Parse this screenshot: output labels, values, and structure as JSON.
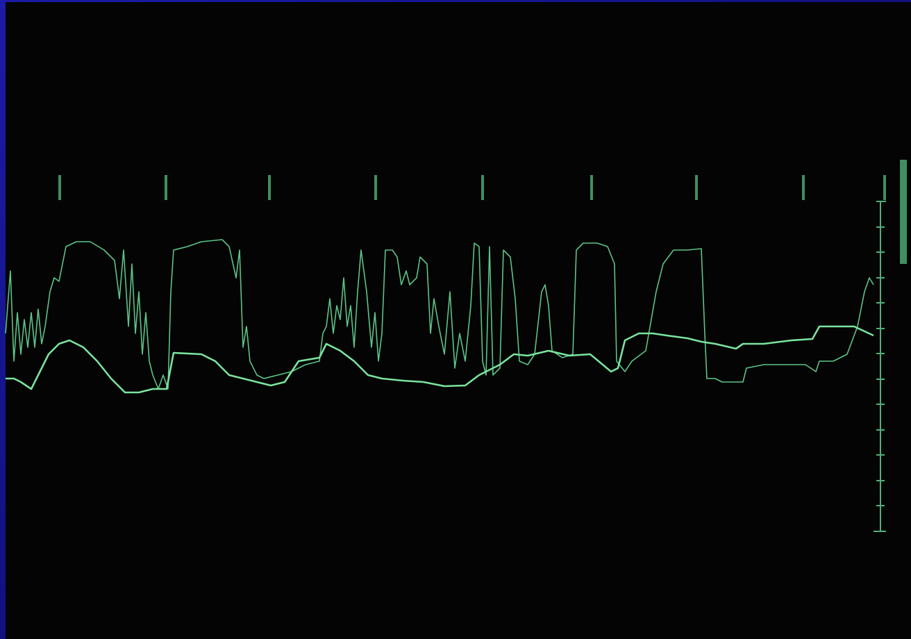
{
  "chart_data": {
    "type": "line",
    "xlim": [
      0,
      1312
    ],
    "ylim": [
      -155,
      765
    ],
    "series": [
      {
        "color": "#5cc488",
        "x": [
          8,
          15,
          20,
          25,
          30,
          35,
          40,
          45,
          50,
          55,
          60,
          65,
          72,
          78,
          85,
          90,
          95,
          110,
          130,
          150,
          165,
          172,
          178,
          185,
          190,
          195,
          200,
          205,
          210,
          215,
          220,
          228,
          235,
          242,
          246,
          250,
          270,
          290,
          320,
          330,
          340,
          345,
          350,
          355,
          360,
          370,
          380,
          400,
          420,
          440,
          460,
          465,
          470,
          475,
          480,
          485,
          490,
          495,
          500,
          505,
          510,
          515,
          520,
          528,
          535,
          540,
          545,
          550,
          555,
          565,
          572,
          578,
          585,
          590,
          600,
          605,
          615,
          620,
          625,
          632,
          640,
          648,
          655,
          662,
          670,
          678,
          683,
          690,
          695,
          700,
          705,
          710,
          720,
          725,
          735,
          742,
          748,
          760,
          770,
          780,
          785,
          790,
          795,
          810,
          825,
          830,
          840,
          860,
          875,
          885,
          888,
          900,
          910,
          930,
          945,
          955,
          970,
          990,
          1010,
          1015,
          1018,
          1030,
          1040,
          1070,
          1075,
          1100,
          1130,
          1160,
          1175,
          1180,
          1200,
          1220,
          1235,
          1245,
          1252,
          1258
        ],
        "values": [
          285,
          375,
          245,
          315,
          255,
          305,
          265,
          315,
          265,
          320,
          270,
          295,
          345,
          365,
          360,
          385,
          410,
          417,
          417,
          405,
          390,
          335,
          405,
          295,
          385,
          285,
          345,
          255,
          315,
          245,
          225,
          205,
          225,
          205,
          345,
          405,
          410,
          417,
          420,
          410,
          365,
          405,
          265,
          295,
          245,
          225,
          220,
          225,
          230,
          240,
          245,
          285,
          295,
          335,
          285,
          325,
          305,
          365,
          295,
          325,
          265,
          345,
          405,
          345,
          265,
          315,
          245,
          285,
          405,
          405,
          395,
          355,
          375,
          355,
          365,
          395,
          385,
          285,
          335,
          295,
          255,
          345,
          235,
          285,
          245,
          325,
          415,
          410,
          245,
          225,
          410,
          225,
          235,
          405,
          395,
          335,
          245,
          240,
          255,
          345,
          355,
          325,
          260,
          250,
          255,
          405,
          415,
          415,
          410,
          385,
          245,
          230,
          245,
          260,
          345,
          385,
          405,
          405,
          407,
          285,
          220,
          220,
          215,
          215,
          235,
          240,
          240,
          240,
          230,
          245,
          245,
          255,
          295,
          345,
          365,
          355
        ]
      },
      {
        "color": "#7be39e",
        "x": [
          8,
          20,
          30,
          45,
          55,
          70,
          85,
          100,
          120,
          140,
          160,
          180,
          200,
          220,
          240,
          250,
          290,
          310,
          330,
          350,
          370,
          390,
          410,
          430,
          460,
          470,
          490,
          510,
          530,
          550,
          580,
          610,
          640,
          670,
          690,
          720,
          740,
          760,
          790,
          820,
          850,
          880,
          890,
          900,
          920,
          940,
          960,
          990,
          1010,
          1030,
          1060,
          1070,
          1100,
          1140,
          1170,
          1180,
          1230,
          1258
        ],
        "values": [
          220,
          220,
          215,
          205,
          225,
          255,
          270,
          275,
          265,
          245,
          220,
          200,
          200,
          205,
          205,
          257,
          255,
          245,
          225,
          220,
          215,
          210,
          215,
          245,
          250,
          270,
          260,
          245,
          225,
          220,
          217,
          215,
          209,
          210,
          225,
          240,
          255,
          253,
          260,
          253,
          255,
          230,
          235,
          275,
          285,
          285,
          282,
          278,
          273,
          270,
          263,
          270,
          270,
          275,
          277,
          295,
          295,
          282
        ]
      }
    ]
  }
}
